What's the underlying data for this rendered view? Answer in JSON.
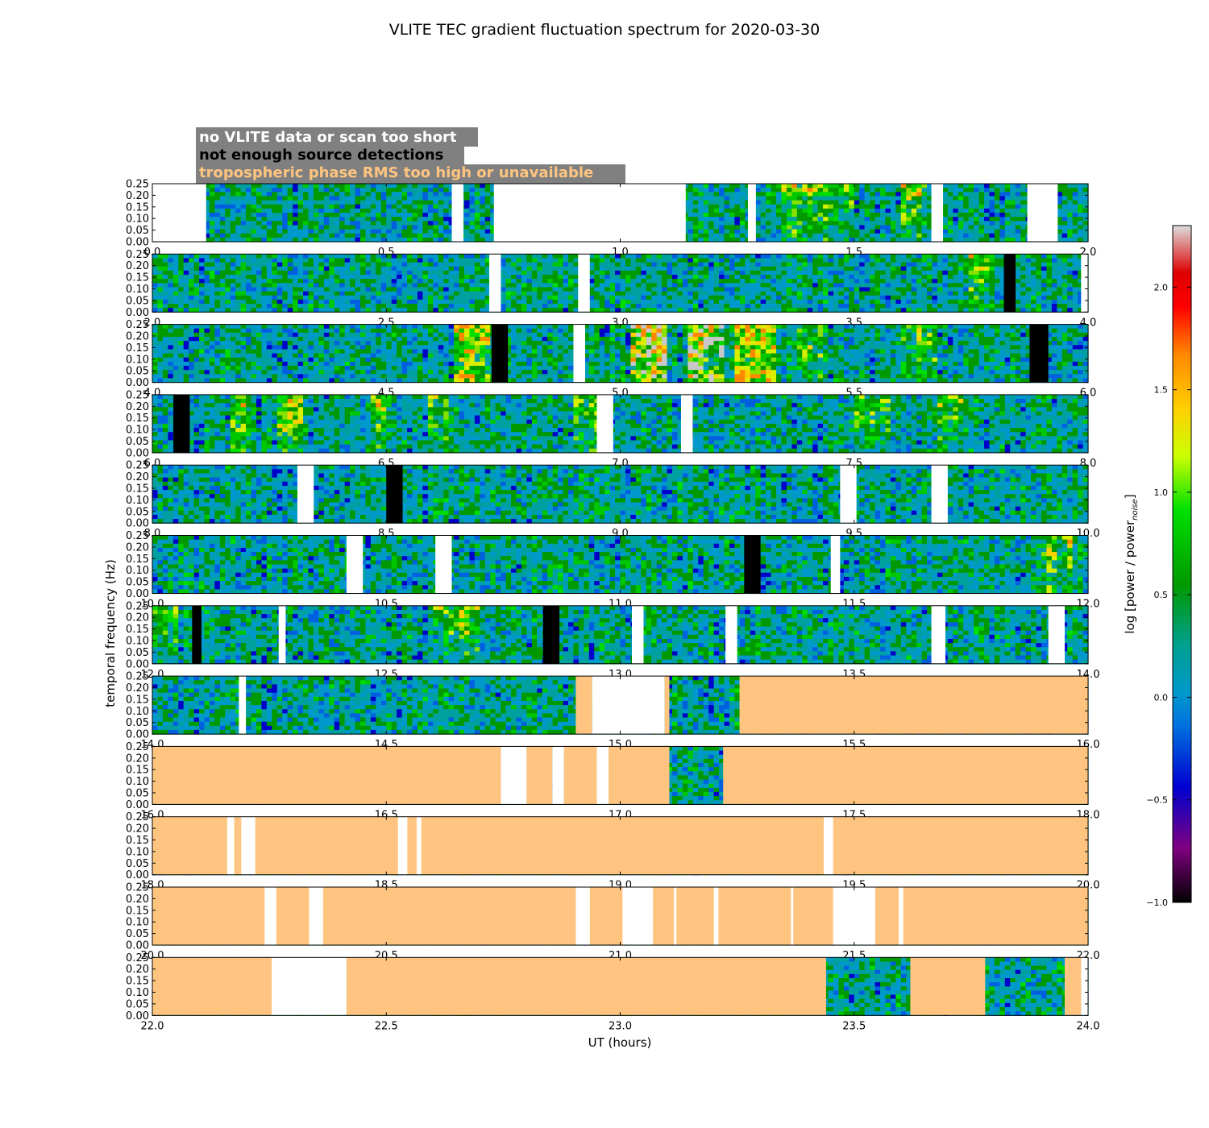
{
  "chart_data": {
    "type": "heatmap",
    "title": "VLITE TEC gradient fluctuation spectrum for 2020-03-30",
    "xlabel": "UT (hours)",
    "ylabel": "temporal frequency (Hz)",
    "ylim": [
      0.0,
      0.25
    ],
    "yticks": [
      "0.00",
      "0.05",
      "0.10",
      "0.15",
      "0.20",
      "0.25"
    ],
    "colorbar": {
      "label": "log [power / power",
      "label_sub": "noise",
      "label_end": "]",
      "range": [
        -1.0,
        2.3
      ],
      "ticks": [
        "−1.0",
        "−0.5",
        "0.0",
        "0.5",
        "1.0",
        "1.5",
        "2.0"
      ]
    },
    "legend": {
      "no_data": {
        "label": "no VLITE data or scan too short",
        "text_color": "#ffffff",
        "fill": "#ffffff"
      },
      "few_detections": {
        "label": "not enough source detections",
        "text_color": "#000000",
        "fill": "#000000"
      },
      "tropo_rms": {
        "label": "tropospheric phase RMS too high or unavailable",
        "text_color": "#ffc580",
        "fill": "#ffc580"
      },
      "box_color": "#808080"
    },
    "panels": [
      {
        "range": [
          0,
          2
        ],
        "xticks": [
          "0.0",
          "0.5",
          "1.0",
          "1.5",
          "2.0"
        ],
        "blocks": [
          [
            "white",
            0,
            0.115
          ],
          [
            "white",
            0.64,
            0.665
          ],
          [
            "white",
            0.73,
            1.14
          ],
          [
            "white",
            1.273,
            1.29
          ],
          [
            "white",
            1.665,
            1.69
          ],
          [
            "white",
            1.87,
            1.935
          ]
        ],
        "activity": [
          [
            1.35,
            1.5,
            0.6
          ],
          [
            1.6,
            1.65,
            0.6
          ]
        ]
      },
      {
        "range": [
          2,
          4
        ],
        "xticks": [
          "2.0",
          "2.5",
          "3.0",
          "3.5",
          "4.0"
        ],
        "blocks": [
          [
            "white",
            2.72,
            2.745
          ],
          [
            "white",
            2.91,
            2.935
          ],
          [
            "black",
            3.82,
            3.845
          ],
          [
            "white",
            3.985,
            4.0
          ]
        ],
        "activity": [
          [
            3.75,
            3.8,
            0.7
          ]
        ]
      },
      {
        "range": [
          4,
          6
        ],
        "xticks": [
          "4.0",
          "4.5",
          "5.0",
          "5.5",
          "6.0"
        ],
        "blocks": [
          [
            "black",
            4.725,
            4.76
          ],
          [
            "white",
            4.9,
            4.925
          ],
          [
            "black",
            5.875,
            5.915
          ]
        ],
        "activity": [
          [
            4.65,
            4.72,
            0.9
          ],
          [
            5.02,
            5.1,
            1.0
          ],
          [
            5.15,
            5.22,
            1.0
          ],
          [
            5.24,
            5.33,
            0.9
          ],
          [
            5.38,
            5.43,
            0.7
          ],
          [
            5.6,
            5.68,
            0.6
          ]
        ]
      },
      {
        "range": [
          6,
          8
        ],
        "xticks": [
          "6.0",
          "6.5",
          "7.0",
          "7.5",
          "8.0"
        ],
        "blocks": [
          [
            "black",
            6.045,
            6.08
          ],
          [
            "white",
            6.95,
            6.985
          ],
          [
            "white",
            7.13,
            7.155
          ]
        ],
        "activity": [
          [
            6.17,
            6.21,
            0.7
          ],
          [
            6.27,
            6.32,
            0.7
          ],
          [
            6.47,
            6.5,
            0.6
          ],
          [
            6.59,
            6.63,
            0.6
          ],
          [
            6.9,
            6.95,
            0.6
          ],
          [
            7.5,
            7.58,
            0.6
          ],
          [
            7.68,
            7.73,
            0.5
          ]
        ]
      },
      {
        "range": [
          8,
          10
        ],
        "xticks": [
          "8.0",
          "8.5",
          "9.0",
          "9.5",
          "10.0"
        ],
        "blocks": [
          [
            "white",
            8.31,
            8.345
          ],
          [
            "black",
            8.5,
            8.535
          ],
          [
            "white",
            9.47,
            9.505
          ],
          [
            "white",
            9.665,
            9.7
          ]
        ],
        "activity": []
      },
      {
        "range": [
          10,
          12
        ],
        "xticks": [
          "10.0",
          "10.5",
          "11.0",
          "11.5",
          "12.0"
        ],
        "blocks": [
          [
            "white",
            10.415,
            10.45
          ],
          [
            "white",
            10.605,
            10.64
          ],
          [
            "black",
            11.265,
            11.3
          ],
          [
            "white",
            11.45,
            11.47
          ]
        ],
        "activity": [
          [
            11.9,
            11.97,
            0.6
          ]
        ]
      },
      {
        "range": [
          12,
          14
        ],
        "xticks": [
          "12.0",
          "12.5",
          "13.0",
          "13.5",
          "14.0"
        ],
        "blocks": [
          [
            "black",
            12.085,
            12.105
          ],
          [
            "white",
            12.27,
            12.285
          ],
          [
            "black",
            12.835,
            12.87
          ],
          [
            "white",
            13.025,
            13.05
          ],
          [
            "white",
            13.225,
            13.25
          ],
          [
            "white",
            13.665,
            13.695
          ],
          [
            "white",
            13.915,
            13.95
          ]
        ],
        "activity": [
          [
            12.0,
            12.06,
            0.6
          ],
          [
            12.6,
            12.7,
            0.5
          ]
        ]
      },
      {
        "range": [
          14,
          16
        ],
        "xticks": [
          "14.0",
          "14.5",
          "15.0",
          "15.5",
          "16.0"
        ],
        "blocks": [
          [
            "white",
            14.185,
            14.2
          ],
          [
            "orange",
            14.905,
            14.94
          ],
          [
            "white",
            14.94,
            15.095
          ],
          [
            "orange",
            15.095,
            15.105
          ],
          [
            "orange",
            15.255,
            16.0
          ]
        ],
        "activity": []
      },
      {
        "range": [
          16,
          18
        ],
        "xticks": [
          "16.0",
          "16.5",
          "17.0",
          "17.5",
          "18.0"
        ],
        "blocks": [
          [
            "orange",
            16.0,
            16.745
          ],
          [
            "white",
            16.745,
            16.8
          ],
          [
            "orange",
            16.8,
            16.855
          ],
          [
            "white",
            16.855,
            16.88
          ],
          [
            "orange",
            16.88,
            16.95
          ],
          [
            "white",
            16.95,
            16.975
          ],
          [
            "orange",
            16.975,
            17.105
          ],
          [
            "orange",
            17.22,
            18.0
          ]
        ],
        "activity": []
      },
      {
        "range": [
          18,
          20
        ],
        "xticks": [
          "18.0",
          "18.5",
          "19.0",
          "19.5",
          "20.0"
        ],
        "blocks": [
          [
            "orange",
            18.0,
            20.0
          ],
          [
            "white",
            18.16,
            18.175
          ],
          [
            "white",
            18.19,
            18.22
          ],
          [
            "white",
            18.525,
            18.545
          ],
          [
            "white",
            18.565,
            18.575
          ],
          [
            "white",
            19.435,
            19.455
          ]
        ],
        "activity": []
      },
      {
        "range": [
          20,
          22
        ],
        "xticks": [
          "20.0",
          "20.5",
          "21.0",
          "21.5",
          "22.0"
        ],
        "blocks": [
          [
            "orange",
            20.0,
            22.0
          ],
          [
            "white",
            20.24,
            20.265
          ],
          [
            "white",
            20.335,
            20.365
          ],
          [
            "white",
            20.905,
            20.935
          ],
          [
            "white",
            21.005,
            21.07
          ],
          [
            "white",
            21.115,
            21.12
          ],
          [
            "white",
            21.2,
            21.21
          ],
          [
            "white",
            21.365,
            21.37
          ],
          [
            "white",
            21.455,
            21.545
          ],
          [
            "white",
            21.595,
            21.605
          ]
        ],
        "activity": []
      },
      {
        "range": [
          22,
          24
        ],
        "xticks": [
          "22.0",
          "22.5",
          "23.0",
          "23.5",
          "24.0"
        ],
        "blocks": [
          [
            "orange",
            22.0,
            22.255
          ],
          [
            "white",
            22.255,
            22.415
          ],
          [
            "orange",
            22.415,
            23.44
          ],
          [
            "orange",
            23.62,
            23.78
          ],
          [
            "orange",
            23.95,
            23.985
          ],
          [
            "white",
            23.985,
            24.0
          ]
        ],
        "activity": []
      }
    ]
  }
}
